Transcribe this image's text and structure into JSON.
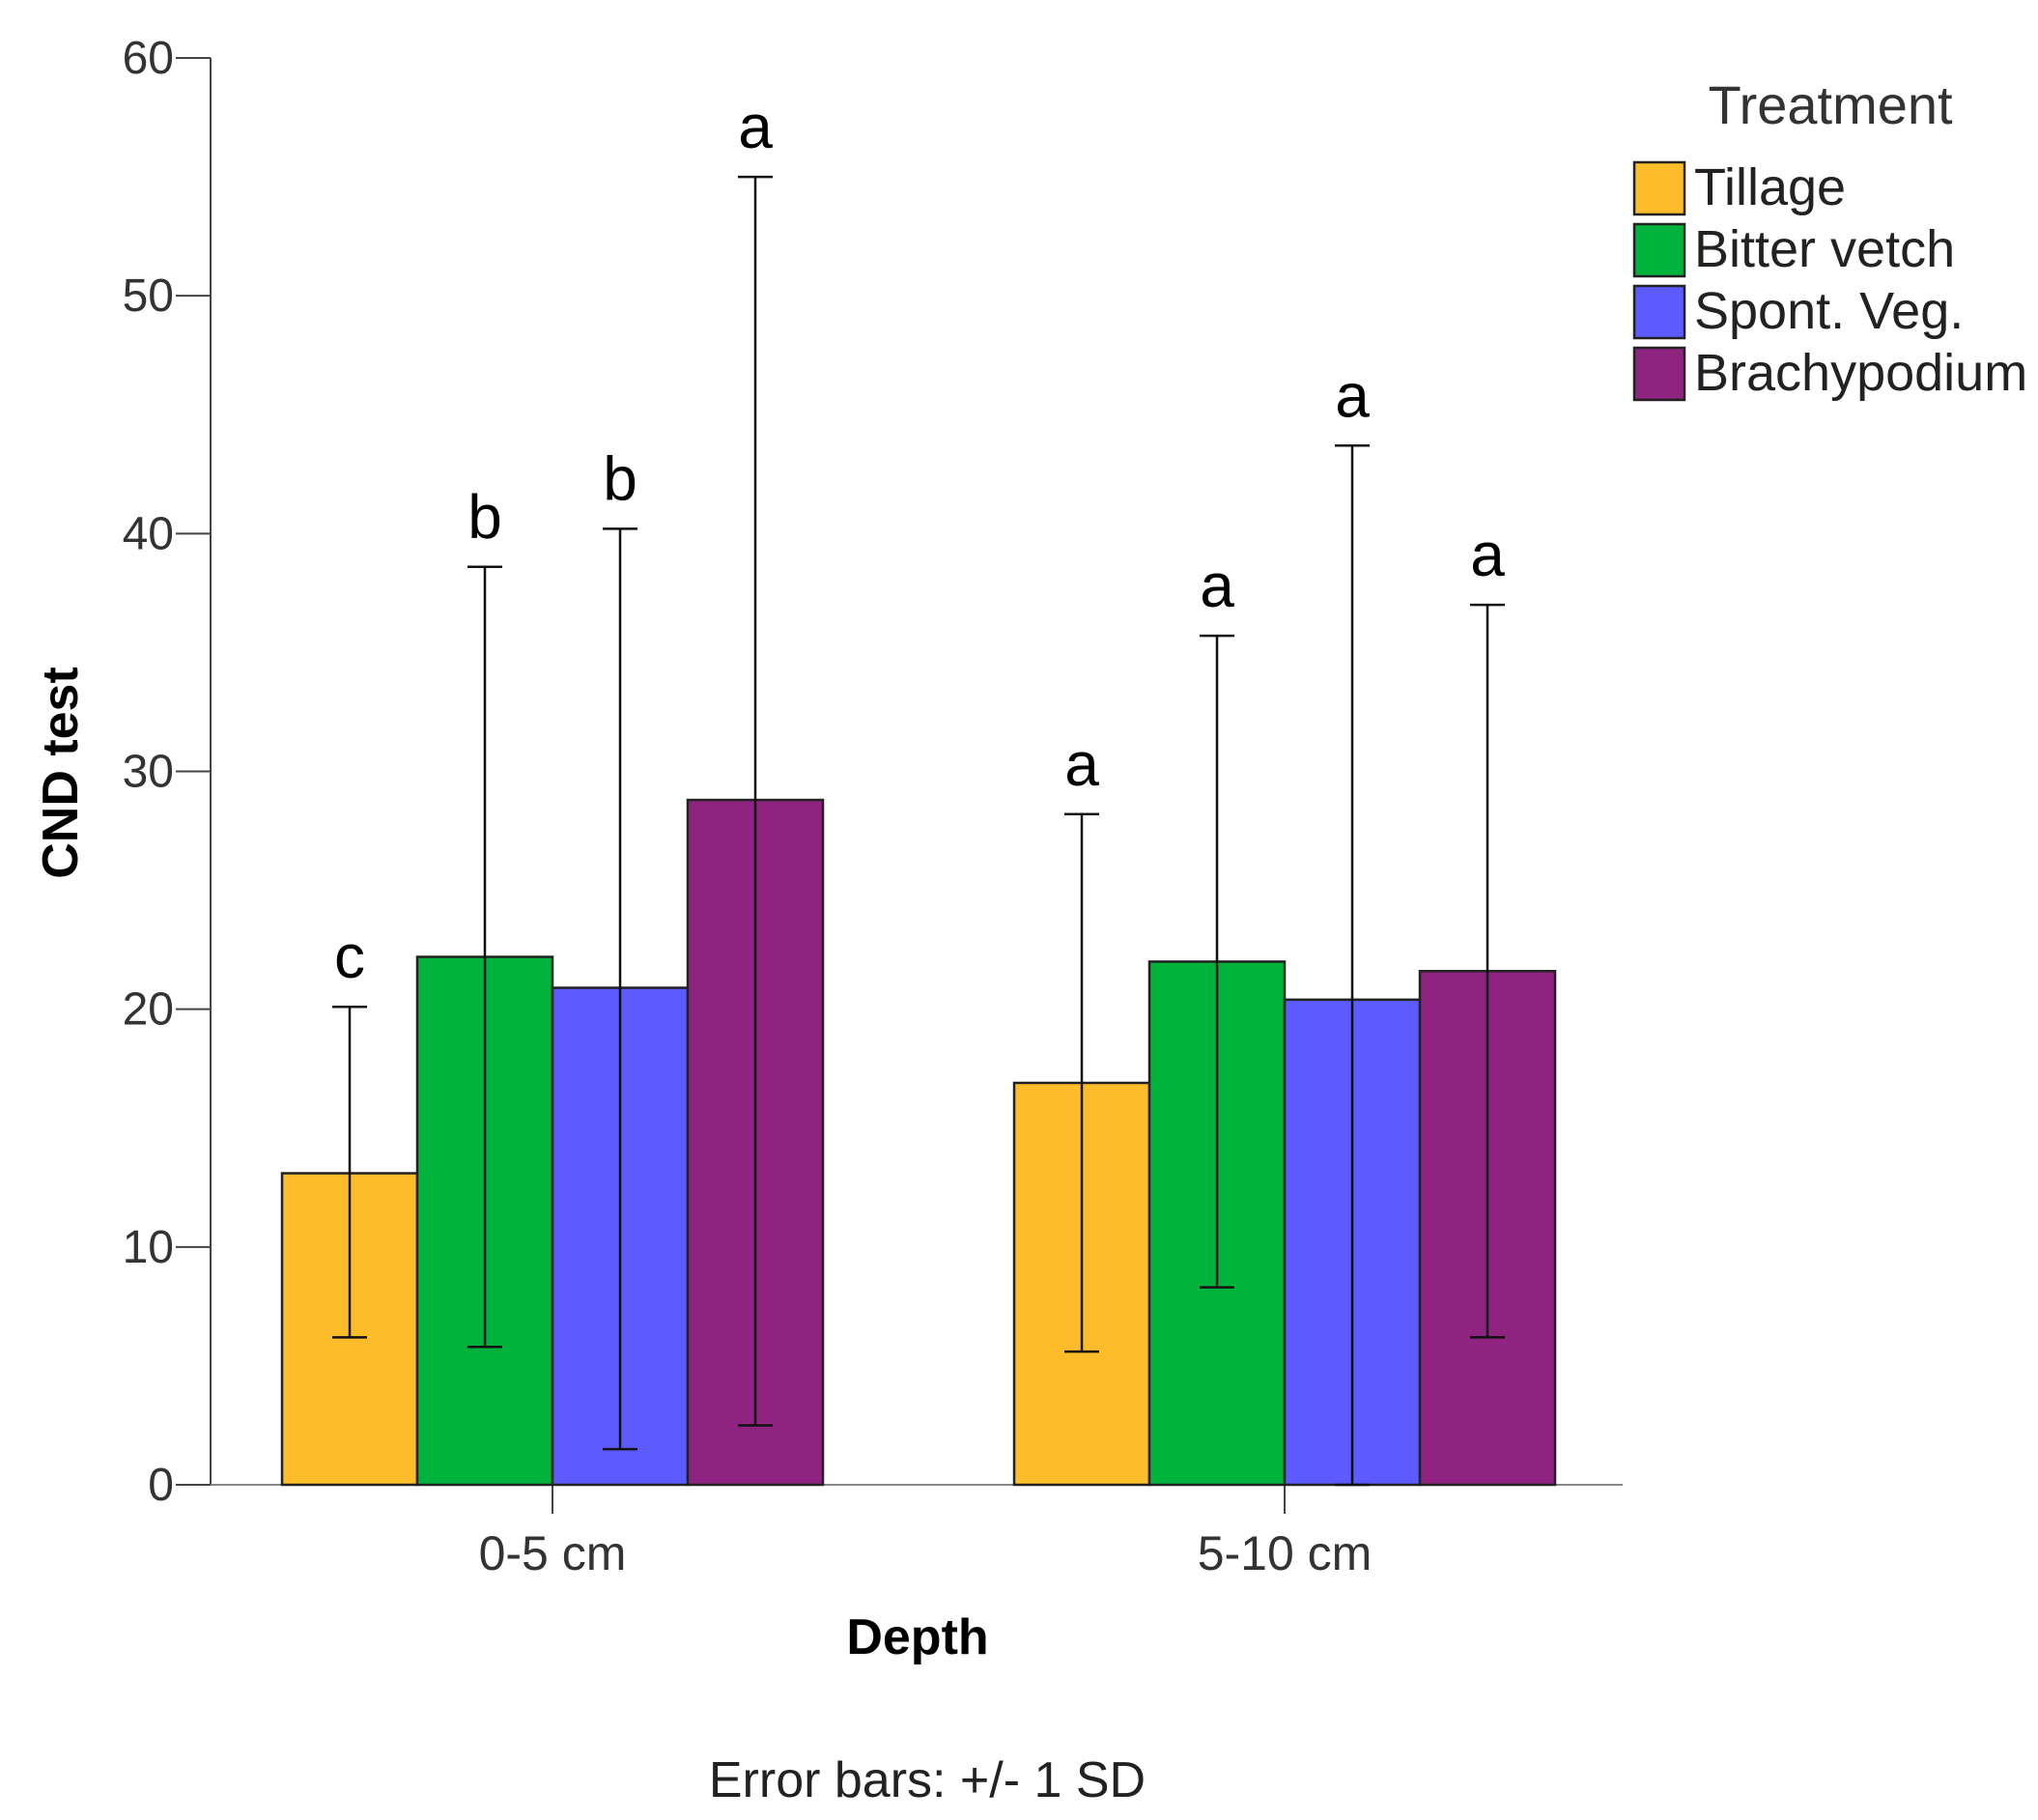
{
  "chart_data": {
    "type": "bar",
    "title": "",
    "xlabel": "Depth",
    "ylabel": "CND test",
    "ylim": [
      0,
      60
    ],
    "yticks": [
      0,
      10,
      20,
      30,
      40,
      50,
      60
    ],
    "categories": [
      "0-5 cm",
      "5-10 cm"
    ],
    "legend_title": "Treatment",
    "legend_position": "top-right",
    "series": [
      {
        "name": "Tillage",
        "color": "#FDBD2A",
        "values": [
          13.1,
          16.9
        ],
        "err_low": [
          6.2,
          5.6
        ],
        "err_high": [
          20.1,
          28.2
        ],
        "letters": [
          "c",
          "a"
        ]
      },
      {
        "name": "Bitter vetch",
        "color": "#00B33C",
        "values": [
          22.2,
          22.0
        ],
        "err_low": [
          5.8,
          8.3
        ],
        "err_high": [
          38.6,
          35.7
        ],
        "letters": [
          "b",
          "a"
        ]
      },
      {
        "name": "Spont. Veg.",
        "color": "#5B5BFF",
        "values": [
          20.9,
          20.4
        ],
        "err_low": [
          1.5,
          0.0
        ],
        "err_high": [
          40.2,
          43.7
        ],
        "letters": [
          "b",
          "a"
        ]
      },
      {
        "name": "Brachypodium",
        "color": "#8E2380",
        "values": [
          28.8,
          21.6
        ],
        "err_low": [
          2.5,
          6.2
        ],
        "err_high": [
          55.0,
          37.0
        ],
        "letters": [
          "a",
          "a"
        ]
      }
    ],
    "footnote": "Error bars: +/- 1 SD"
  }
}
